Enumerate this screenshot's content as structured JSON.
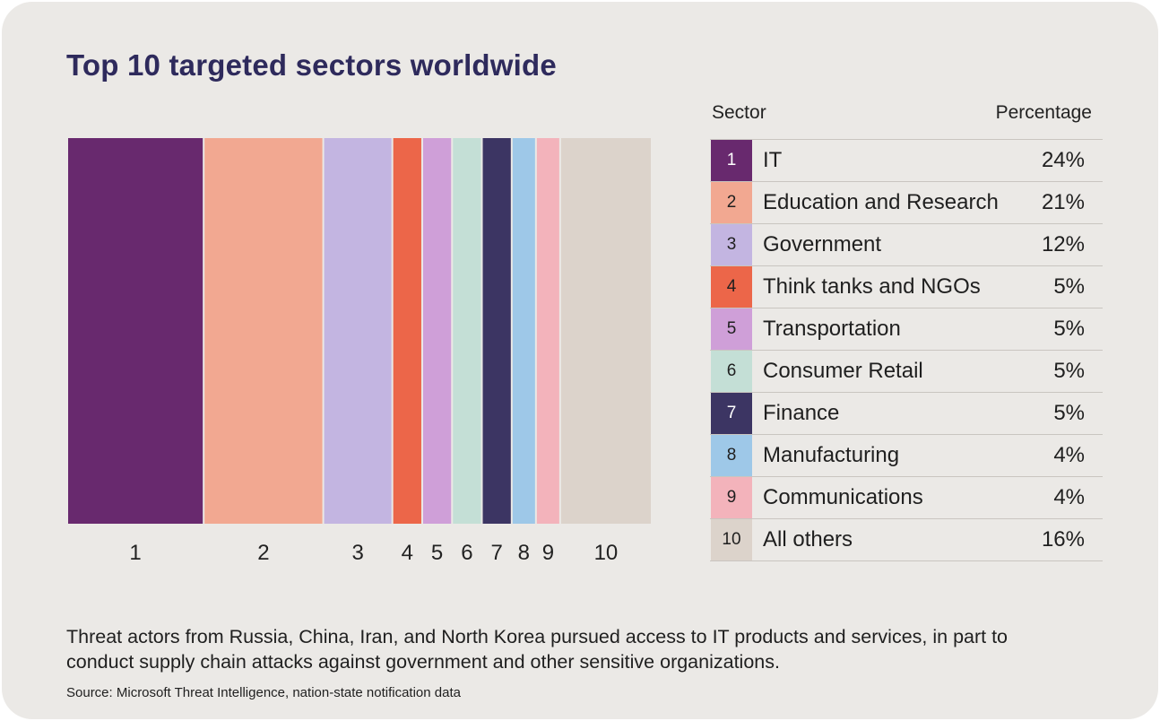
{
  "title": "Top 10 targeted sectors worldwide",
  "table": {
    "header_sector": "Sector",
    "header_percentage": "Percentage"
  },
  "chart_data": {
    "type": "bar",
    "title": "Top 10 targeted sectors worldwide",
    "categories": [
      "1",
      "2",
      "3",
      "4",
      "5",
      "6",
      "7",
      "8",
      "9",
      "10"
    ],
    "sectors": [
      "IT",
      "Education and Research",
      "Government",
      "Think tanks and NGOs",
      "Transportation",
      "Consumer Retail",
      "Finance",
      "Manufacturing",
      "Communications",
      "All others"
    ],
    "values": [
      24,
      21,
      12,
      5,
      5,
      5,
      5,
      4,
      4,
      16
    ],
    "value_labels": [
      "24%",
      "21%",
      "12%",
      "5%",
      "5%",
      "5%",
      "5%",
      "4%",
      "4%",
      "16%"
    ],
    "colors": [
      "#68296e",
      "#f2a891",
      "#c3b5e1",
      "#ec6649",
      "#cf9fd8",
      "#c4dfd6",
      "#3c3563",
      "#9ec8e8",
      "#f3b3bb",
      "#dcd3cb"
    ],
    "number_colors": [
      "#ffffff",
      "#1f1f1f",
      "#1f1f1f",
      "#1f1f1f",
      "#1f1f1f",
      "#1f1f1f",
      "#ffffff",
      "#1f1f1f",
      "#1f1f1f",
      "#1f1f1f"
    ],
    "legend": "right",
    "grid": false
  },
  "caption": "Threat actors from Russia, China, Iran, and North Korea pursued access to IT products and services, in part to conduct supply chain attacks against government and other sensitive organizations.",
  "source": "Source: Microsoft Threat Intelligence, nation-state notification data"
}
